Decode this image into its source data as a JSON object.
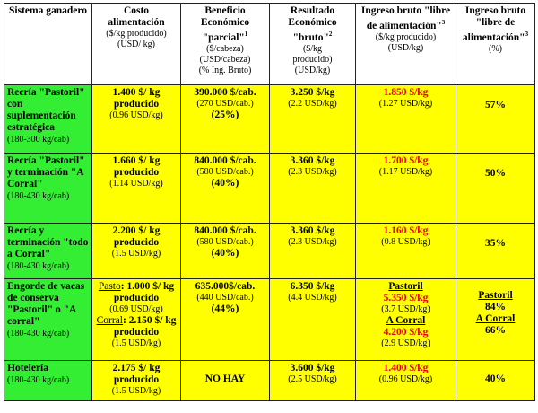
{
  "headers": [
    {
      "title": "Sistema ganadero",
      "sub": []
    },
    {
      "title": "Costo alimentación",
      "sub": [
        "($/kg producido)",
        "(USD/ kg)"
      ]
    },
    {
      "title": "Beneficio Económico \"parcial\"",
      "sup": "1",
      "sub": [
        "($/cabeza)",
        "(USD/cabeza)",
        "(% Ing. Bruto)"
      ]
    },
    {
      "title": "Resultado Económico \"bruto\"",
      "sup": "2",
      "sub": [
        "($/kg",
        "producido)",
        "(USD/kg)"
      ]
    },
    {
      "title": "Ingreso bruto \"libre de alimentación\"",
      "sup": "3",
      "sub": [
        "($/kg producido)",
        "(USD/kg)"
      ]
    },
    {
      "title": "Ingreso bruto \"libre de alimentación\"",
      "sup": "3",
      "sub": [
        "(%)"
      ]
    }
  ],
  "rows": [
    {
      "system": "Recría \"Pastoril\" con suplementación estratégica",
      "range": "(180-300 kg/cab)",
      "cost": "1.400 $/ kg producido",
      "cost_usd": "(0.96 USD/kg)",
      "benefit": "390.000 $/cab.",
      "benefit_usd": "(270 USD/cab.)",
      "benefit_pct": "(25%)",
      "result": "3.250 $/kg",
      "result_usd": "(2.2 USD/kg)",
      "income": "1.850 $/kg",
      "income_usd": "(1.27 USD/kg)",
      "income_pct": "57%"
    },
    {
      "system": "Recría \"Pastoril\" y terminación \"A Corral\"",
      "range": "(180-430 kg/cab)",
      "cost": "1.660 $/ kg producido",
      "cost_usd": "(1.14 USD/kg)",
      "benefit": "840.000 $/cab.",
      "benefit_usd": "(580 USD/cab.)",
      "benefit_pct": "(40%)",
      "result": "3.360 $/kg",
      "result_usd": "(2.3 USD/kg)",
      "income": "1.700 $/kg",
      "income_usd": "(1.17 USD/kg)",
      "income_pct": "50%"
    },
    {
      "system": "Recría y terminación \"todo a Corral\"",
      "range": "(180-430 kg/cab)",
      "cost": "2.200 $/ kg producido",
      "cost_usd": "(1.5 USD/kg)",
      "benefit": "840.000 $/cab.",
      "benefit_usd": "(580 USD/cab.)",
      "benefit_pct": "(40%)",
      "result": "3.360 $/kg",
      "result_usd": "(2.3 USD/kg)",
      "income": "1.160 $/kg",
      "income_usd": "(0.8 USD/kg)",
      "income_pct": "35%"
    },
    {
      "system": "Engorde de vacas de conserva \"Pastoril\" o \"A corral\"",
      "range": "(180-430 kg/cab)",
      "cost_pasto_label": "Pasto",
      "cost_pasto": ": 1.000 $/ kg producido",
      "cost_pasto_usd": "(0.69 USD/kg)",
      "cost_corral_label": "Corral",
      "cost_corral": ": 2.150 $/ kg producido",
      "cost_corral_usd": "(1.5 USD/kg)",
      "benefit": "635.000$/cab.",
      "benefit_usd": "(440 USD/cab.)",
      "benefit_pct": "(44%)",
      "result": "6.350 $/kg",
      "result_usd": "(4.4 USD/kg)",
      "income_pastoril_label": "Pastoril",
      "income_pastoril": "5.350 $/kg",
      "income_pastoril_usd": "(3.7 USD/kg)",
      "income_corral_label": "A Corral",
      "income_corral": "4.200 $/kg",
      "income_corral_usd": "(2.9 USD/kg)",
      "pct_pastoril_label": "Pastoril",
      "pct_pastoril": "84%",
      "pct_corral_label": "A Corral",
      "pct_corral": "66%"
    },
    {
      "system": "Hotelería",
      "range": "(180-430 kg/cab)",
      "cost": "2.175 $/ kg producido",
      "cost_usd": "(1.5 USD/kg)",
      "benefit": "NO HAY",
      "result": "3.600 $/kg",
      "result_usd": "(2.5 USD/kg)",
      "income": "1.400 $/kg",
      "income_usd": "(0.96 USD/kg)",
      "income_pct": "40%"
    }
  ],
  "colors": {
    "label_bg": "#33ee33",
    "cell_bg": "#ffff00",
    "highlight": "#e00000"
  }
}
